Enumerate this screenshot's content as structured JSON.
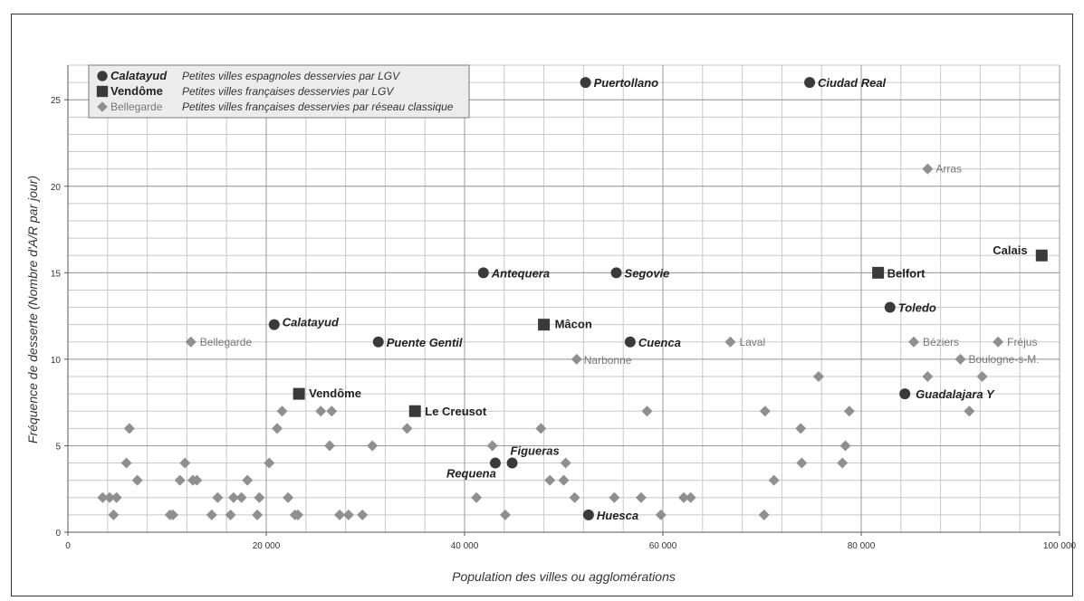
{
  "chart_data": {
    "type": "scatter",
    "xlabel": "Population des villes ou agglomérations",
    "ylabel": "Fréquence de desserte (Nombre d'A/R par jour)",
    "xlim": [
      0,
      100000
    ],
    "ylim": [
      0,
      27
    ],
    "x_ticks": [
      0,
      20000,
      40000,
      60000,
      80000,
      100000
    ],
    "x_tick_labels": [
      "0",
      "20 000",
      "40 000",
      "60 000",
      "80 000",
      "100 000"
    ],
    "y_ticks": [
      0,
      5,
      10,
      15,
      20,
      25
    ],
    "y_tick_labels": [
      "0",
      "5",
      "10",
      "15",
      "20",
      "25"
    ],
    "grid": true,
    "legend_position": "top-left",
    "legend": [
      {
        "marker": "circle",
        "name": "Calatayud",
        "description": "Petites villes espagnoles desservies par LGV"
      },
      {
        "marker": "square",
        "name": "Vendôme",
        "description": "Petites villes françaises desservies par LGV"
      },
      {
        "marker": "diamond",
        "name": "Bellegarde",
        "description": "Petites villes françaises desservies par réseau classique"
      }
    ],
    "colors": {
      "lgv": "#3a3a3a",
      "classic": "#8f8f8f",
      "grid": "#c8c8c8",
      "grid_major": "#9a9a9a"
    },
    "series": [
      {
        "name": "Petites villes espagnoles desservies par LGV",
        "marker": "circle",
        "points": [
          {
            "x": 52200,
            "y": 26,
            "label": "Puertollano"
          },
          {
            "x": 74800,
            "y": 26,
            "label": "Ciudad Real"
          },
          {
            "x": 41900,
            "y": 15,
            "label": "Antequera"
          },
          {
            "x": 55300,
            "y": 15,
            "label": "Segovie"
          },
          {
            "x": 82900,
            "y": 13,
            "label": "Toledo"
          },
          {
            "x": 20800,
            "y": 12,
            "label": "Calatayud"
          },
          {
            "x": 31300,
            "y": 11,
            "label": "Puente Gentil"
          },
          {
            "x": 56700,
            "y": 11,
            "label": "Cuenca"
          },
          {
            "x": 84400,
            "y": 8,
            "label": "Guadalajara Y"
          },
          {
            "x": 44800,
            "y": 4,
            "label": "Figueras"
          },
          {
            "x": 43100,
            "y": 4,
            "label": "Requena"
          },
          {
            "x": 52500,
            "y": 1,
            "label": "Huesca"
          }
        ]
      },
      {
        "name": "Petites villes françaises desservies par LGV",
        "marker": "square",
        "points": [
          {
            "x": 98200,
            "y": 16,
            "label": "Calais"
          },
          {
            "x": 81700,
            "y": 15,
            "label": "Belfort"
          },
          {
            "x": 48000,
            "y": 12,
            "label": "Mâcon"
          },
          {
            "x": 23300,
            "y": 8,
            "label": "Vendôme"
          },
          {
            "x": 35000,
            "y": 7,
            "label": "Le Creusot"
          }
        ]
      },
      {
        "name": "Petites villes françaises desservies par réseau classique",
        "marker": "diamond",
        "points": [
          {
            "x": 86700,
            "y": 21,
            "label": "Arras"
          },
          {
            "x": 12400,
            "y": 11,
            "label": "Bellegarde"
          },
          {
            "x": 66800,
            "y": 11,
            "label": "Laval"
          },
          {
            "x": 85300,
            "y": 11,
            "label": "Béziers"
          },
          {
            "x": 93800,
            "y": 11,
            "label": "Fréjus"
          },
          {
            "x": 51300,
            "y": 10,
            "label": "Narbonne"
          },
          {
            "x": 90000,
            "y": 10,
            "label": "Boulogne-s-M."
          },
          {
            "x": 75700,
            "y": 9
          },
          {
            "x": 86700,
            "y": 9
          },
          {
            "x": 92200,
            "y": 9
          },
          {
            "x": 21600,
            "y": 7
          },
          {
            "x": 25500,
            "y": 7
          },
          {
            "x": 26600,
            "y": 7
          },
          {
            "x": 58400,
            "y": 7
          },
          {
            "x": 70300,
            "y": 7
          },
          {
            "x": 78800,
            "y": 7
          },
          {
            "x": 90900,
            "y": 7
          },
          {
            "x": 6200,
            "y": 6
          },
          {
            "x": 21100,
            "y": 6
          },
          {
            "x": 34200,
            "y": 6
          },
          {
            "x": 47700,
            "y": 6
          },
          {
            "x": 73900,
            "y": 6
          },
          {
            "x": 26400,
            "y": 5
          },
          {
            "x": 30700,
            "y": 5
          },
          {
            "x": 42800,
            "y": 5
          },
          {
            "x": 78400,
            "y": 5
          },
          {
            "x": 5900,
            "y": 4
          },
          {
            "x": 11800,
            "y": 4
          },
          {
            "x": 20300,
            "y": 4
          },
          {
            "x": 50200,
            "y": 4
          },
          {
            "x": 74000,
            "y": 4
          },
          {
            "x": 78100,
            "y": 4
          },
          {
            "x": 7000,
            "y": 3
          },
          {
            "x": 11300,
            "y": 3
          },
          {
            "x": 12600,
            "y": 3
          },
          {
            "x": 13000,
            "y": 3
          },
          {
            "x": 18100,
            "y": 3
          },
          {
            "x": 48600,
            "y": 3
          },
          {
            "x": 50000,
            "y": 3
          },
          {
            "x": 71200,
            "y": 3
          },
          {
            "x": 3500,
            "y": 2
          },
          {
            "x": 4200,
            "y": 2
          },
          {
            "x": 4900,
            "y": 2
          },
          {
            "x": 15100,
            "y": 2
          },
          {
            "x": 16700,
            "y": 2
          },
          {
            "x": 17500,
            "y": 2
          },
          {
            "x": 19300,
            "y": 2
          },
          {
            "x": 22200,
            "y": 2
          },
          {
            "x": 41200,
            "y": 2
          },
          {
            "x": 51100,
            "y": 2
          },
          {
            "x": 55100,
            "y": 2
          },
          {
            "x": 57800,
            "y": 2
          },
          {
            "x": 62100,
            "y": 2
          },
          {
            "x": 62800,
            "y": 2
          },
          {
            "x": 4600,
            "y": 1
          },
          {
            "x": 10300,
            "y": 1
          },
          {
            "x": 10600,
            "y": 1
          },
          {
            "x": 14500,
            "y": 1
          },
          {
            "x": 16400,
            "y": 1
          },
          {
            "x": 19100,
            "y": 1
          },
          {
            "x": 22900,
            "y": 1
          },
          {
            "x": 23200,
            "y": 1
          },
          {
            "x": 27400,
            "y": 1
          },
          {
            "x": 28300,
            "y": 1
          },
          {
            "x": 29700,
            "y": 1
          },
          {
            "x": 44100,
            "y": 1
          },
          {
            "x": 59800,
            "y": 1
          },
          {
            "x": 70200,
            "y": 1
          }
        ]
      }
    ]
  }
}
